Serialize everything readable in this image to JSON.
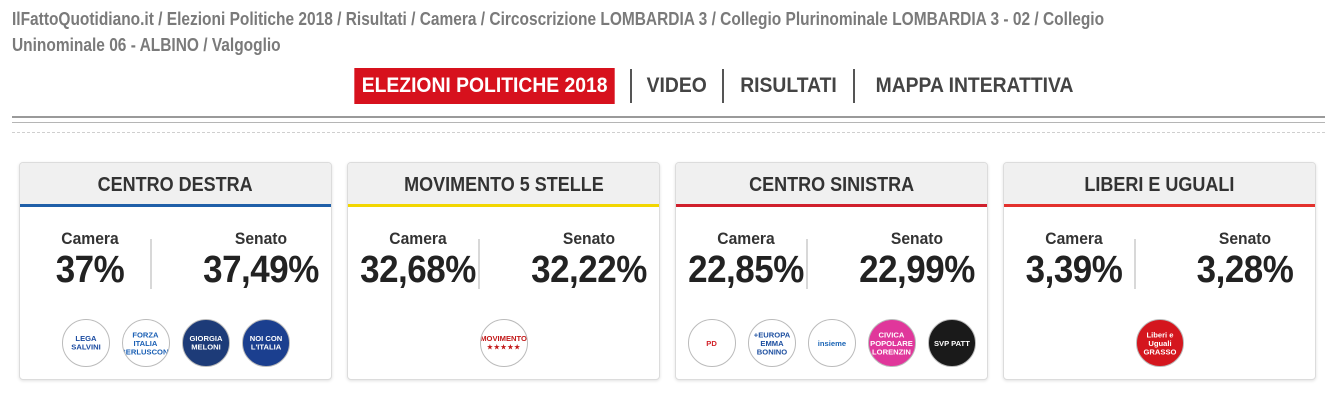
{
  "breadcrumb": {
    "line1": "IlFattoQuotidiano.it / Elezioni Politiche 2018 / Risultati / Camera / Circoscrizione LOMBARDIA 3 / Collegio Plurinominale LOMBARDIA 3 - 02 / Collegio",
    "line2": "Uninominale 06 - ALBINO / Valgoglio"
  },
  "nav": {
    "items": [
      "ELEZIONI POLITICHE 2018",
      "VIDEO",
      "RISULTATI",
      "MAPPA INTERATTIVA"
    ],
    "accent": "#d7111d"
  },
  "cards": [
    {
      "title": "CENTRO DESTRA",
      "accent": "#1f5fa8",
      "camera_label": "Camera",
      "camera_pct": "37%",
      "senato_label": "Senato",
      "senato_pct": "37,49%",
      "logos": [
        {
          "text": "LEGA SALVINI",
          "bg": "#ffffff",
          "fg": "#1a4aa0"
        },
        {
          "text": "FORZA ITALIA BERLUSCONI",
          "bg": "#ffffff",
          "fg": "#1a5fb4"
        },
        {
          "text": "GIORGIA MELONI",
          "bg": "#1d3b78",
          "fg": "#ffffff"
        },
        {
          "text": "NOI CON L'ITALIA",
          "bg": "#1b3f8f",
          "fg": "#ffffff"
        }
      ]
    },
    {
      "title": "MOVIMENTO 5 STELLE",
      "accent": "#f2d600",
      "camera_label": "Camera",
      "camera_pct": "32,68%",
      "senato_label": "Senato",
      "senato_pct": "32,22%",
      "logos": [
        {
          "text": "MOVIMENTO ★★★★★",
          "bg": "#ffffff",
          "fg": "#c21818"
        }
      ]
    },
    {
      "title": "CENTRO SINISTRA",
      "accent": "#d01f2c",
      "camera_label": "Camera",
      "camera_pct": "22,85%",
      "senato_label": "Senato",
      "senato_pct": "22,99%",
      "logos": [
        {
          "text": "PD",
          "bg": "#ffffff",
          "fg": "#d2232a"
        },
        {
          "text": "+EUROPA EMMA BONINO",
          "bg": "#ffffff",
          "fg": "#1d4fa0"
        },
        {
          "text": "insieme",
          "bg": "#ffffff",
          "fg": "#1a64b5"
        },
        {
          "text": "CIVICA POPOLARE LORENZIN",
          "bg": "#e0379b",
          "fg": "#ffffff"
        },
        {
          "text": "SVP PATT",
          "bg": "#1a1a1a",
          "fg": "#ffffff"
        }
      ]
    },
    {
      "title": "LIBERI E UGUALI",
      "accent": "#e3312d",
      "camera_label": "Camera",
      "camera_pct": "3,39%",
      "senato_label": "Senato",
      "senato_pct": "3,28%",
      "logos": [
        {
          "text": "Liberi e Uguali GRASSO",
          "bg": "#d4161e",
          "fg": "#ffffff"
        }
      ]
    }
  ]
}
